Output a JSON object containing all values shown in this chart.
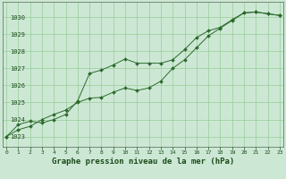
{
  "hours": [
    0,
    1,
    2,
    3,
    4,
    5,
    6,
    7,
    8,
    9,
    10,
    11,
    12,
    13,
    14,
    15,
    16,
    17,
    18,
    19,
    20,
    21,
    22,
    23
  ],
  "series1": [
    1023.0,
    1023.7,
    1023.9,
    1023.8,
    1024.0,
    1024.3,
    1025.1,
    1026.7,
    1026.9,
    1027.2,
    1027.55,
    1027.3,
    1027.3,
    1027.3,
    1027.5,
    1028.1,
    1028.8,
    1029.2,
    1029.4,
    1029.85,
    1030.25,
    1030.3,
    1030.2,
    1030.1
  ],
  "series2": [
    1023.0,
    1023.4,
    1023.6,
    1024.0,
    1024.3,
    1024.55,
    1025.0,
    1025.25,
    1025.3,
    1025.6,
    1025.85,
    1025.7,
    1025.85,
    1026.25,
    1027.0,
    1027.5,
    1028.2,
    1028.9,
    1029.35,
    1029.8,
    1030.25,
    1030.3,
    1030.2,
    1030.1
  ],
  "line_color": "#2d6a2d",
  "marker_color": "#2d6a2d",
  "bg_color": "#cce8d4",
  "grid_color": "#99cc99",
  "text_color": "#1a4a1a",
  "xlabel": "Graphe pression niveau de la mer (hPa)",
  "ylim": [
    1022.4,
    1030.9
  ],
  "xlim": [
    -0.3,
    23.3
  ],
  "yticks": [
    1023,
    1024,
    1025,
    1026,
    1027,
    1028,
    1029,
    1030
  ],
  "xticks": [
    0,
    1,
    2,
    3,
    4,
    5,
    6,
    7,
    8,
    9,
    10,
    11,
    12,
    13,
    14,
    15,
    16,
    17,
    18,
    19,
    20,
    21,
    22,
    23
  ]
}
